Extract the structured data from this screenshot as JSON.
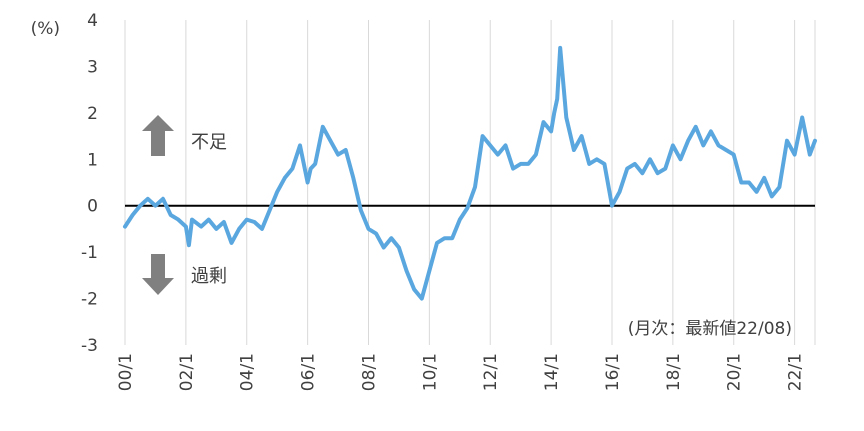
{
  "chart_data": {
    "type": "line",
    "ylabel": "(%)",
    "ylim": [
      -3,
      4
    ],
    "yticks": [
      4,
      3,
      2,
      1,
      0,
      -1,
      -2,
      -3
    ],
    "xlim": [
      2000.0,
      2022.67
    ],
    "xticks": [
      {
        "label": "00/1",
        "x": 2000.0
      },
      {
        "label": "02/1",
        "x": 2002.0
      },
      {
        "label": "04/1",
        "x": 2004.0
      },
      {
        "label": "06/1",
        "x": 2006.0
      },
      {
        "label": "08/1",
        "x": 2008.0
      },
      {
        "label": "10/1",
        "x": 2010.0
      },
      {
        "label": "12/1",
        "x": 2012.0
      },
      {
        "label": "14/1",
        "x": 2014.0
      },
      {
        "label": "16/1",
        "x": 2016.0
      },
      {
        "label": "18/1",
        "x": 2018.0
      },
      {
        "label": "20/1",
        "x": 2020.0
      },
      {
        "label": "22/1",
        "x": 2022.0
      }
    ],
    "grid": "vertical",
    "zero_line": true,
    "series": [
      {
        "color": "#5aa7df",
        "x": [
          2000.0,
          2000.25,
          2000.5,
          2000.75,
          2001.0,
          2001.25,
          2001.5,
          2001.75,
          2002.0,
          2002.1,
          2002.2,
          2002.5,
          2002.75,
          2003.0,
          2003.25,
          2003.5,
          2003.75,
          2004.0,
          2004.25,
          2004.5,
          2004.75,
          2005.0,
          2005.25,
          2005.5,
          2005.75,
          2006.0,
          2006.1,
          2006.25,
          2006.5,
          2006.75,
          2007.0,
          2007.25,
          2007.5,
          2007.75,
          2008.0,
          2008.25,
          2008.5,
          2008.75,
          2009.0,
          2009.25,
          2009.5,
          2009.75,
          2010.0,
          2010.25,
          2010.5,
          2010.75,
          2011.0,
          2011.25,
          2011.5,
          2011.75,
          2012.0,
          2012.25,
          2012.5,
          2012.75,
          2013.0,
          2013.25,
          2013.5,
          2013.75,
          2014.0,
          2014.1,
          2014.2,
          2014.3,
          2014.5,
          2014.75,
          2015.0,
          2015.25,
          2015.5,
          2015.75,
          2016.0,
          2016.25,
          2016.5,
          2016.75,
          2017.0,
          2017.25,
          2017.5,
          2017.75,
          2018.0,
          2018.25,
          2018.5,
          2018.75,
          2019.0,
          2019.25,
          2019.5,
          2019.75,
          2020.0,
          2020.25,
          2020.5,
          2020.75,
          2021.0,
          2021.25,
          2021.5,
          2021.75,
          2022.0,
          2022.25,
          2022.5,
          2022.67
        ],
        "values": [
          -0.45,
          -0.2,
          0.0,
          0.15,
          0.0,
          0.15,
          -0.2,
          -0.3,
          -0.45,
          -0.85,
          -0.3,
          -0.45,
          -0.3,
          -0.5,
          -0.35,
          -0.8,
          -0.5,
          -0.3,
          -0.35,
          -0.5,
          -0.1,
          0.3,
          0.6,
          0.8,
          1.3,
          0.5,
          0.8,
          0.9,
          1.7,
          1.4,
          1.1,
          1.2,
          0.6,
          -0.1,
          -0.5,
          -0.6,
          -0.9,
          -0.7,
          -0.9,
          -1.4,
          -1.8,
          -2.0,
          -1.4,
          -0.8,
          -0.7,
          -0.7,
          -0.3,
          -0.05,
          0.4,
          1.5,
          1.3,
          1.1,
          1.3,
          0.8,
          0.9,
          0.9,
          1.1,
          1.8,
          1.6,
          2.0,
          2.3,
          3.4,
          1.9,
          1.2,
          1.5,
          0.9,
          1.0,
          0.9,
          0.0,
          0.3,
          0.8,
          0.9,
          0.7,
          1.0,
          0.7,
          0.8,
          1.3,
          1.0,
          1.4,
          1.7,
          1.3,
          1.6,
          1.3,
          1.2,
          1.1,
          0.5,
          0.5,
          0.3,
          0.6,
          0.2,
          0.4,
          1.4,
          1.1,
          1.9,
          1.1,
          1.4
        ]
      }
    ],
    "annotations": [
      {
        "text": "不足",
        "arrow": "up"
      },
      {
        "text": "過剰",
        "arrow": "down"
      },
      {
        "text": "(月次：最新値22/08)"
      }
    ]
  }
}
